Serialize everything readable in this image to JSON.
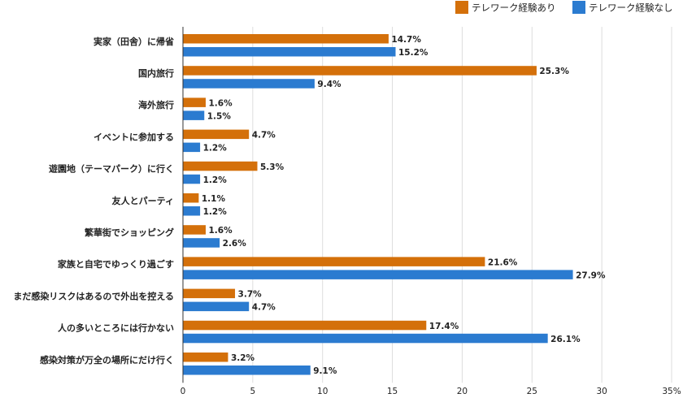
{
  "chart_data": {
    "type": "bar",
    "orientation": "horizontal",
    "categories": [
      "実家（田舎）に帰省",
      "国内旅行",
      "海外旅行",
      "イベントに参加する",
      "遊園地（テーマパーク）に行く",
      "友人とパーティ",
      "繁華街でショッピング",
      "家族と自宅でゆっくり過ごす",
      "まだ感染リスクはあるので外出を控える",
      "人の多いところには行かない",
      "感染対策が万全の場所にだけ行く"
    ],
    "series": [
      {
        "name": "テレワーク経験あり",
        "color": "#d4700a",
        "values": [
          14.7,
          25.3,
          1.6,
          4.7,
          5.3,
          1.1,
          1.6,
          21.6,
          3.7,
          17.4,
          3.2
        ],
        "labels": [
          "14.7%",
          "25.3%",
          "1.6%",
          "4.7%",
          "5.3%",
          "1.1%",
          "1.6%",
          "21.6%",
          "3.7%",
          "17.4%",
          "3.2%"
        ]
      },
      {
        "name": "テレワーク経験なし",
        "color": "#2b7bd0",
        "values": [
          15.2,
          9.4,
          1.5,
          1.2,
          1.2,
          1.2,
          2.6,
          27.9,
          4.7,
          26.1,
          9.1
        ],
        "labels": [
          "15.2%",
          "9.4%",
          "1.5%",
          "1.2%",
          "1.2%",
          "1.2%",
          "2.6%",
          "27.9%",
          "4.7%",
          "26.1%",
          "9.1%"
        ]
      }
    ],
    "xlim": [
      0,
      35
    ],
    "xticks": [
      0,
      5,
      10,
      15,
      20,
      25,
      30,
      35
    ],
    "xtick_labels": [
      "0",
      "5",
      "10",
      "15",
      "20",
      "25",
      "30",
      "35%"
    ],
    "grid": true,
    "legend_position": "top-right"
  }
}
